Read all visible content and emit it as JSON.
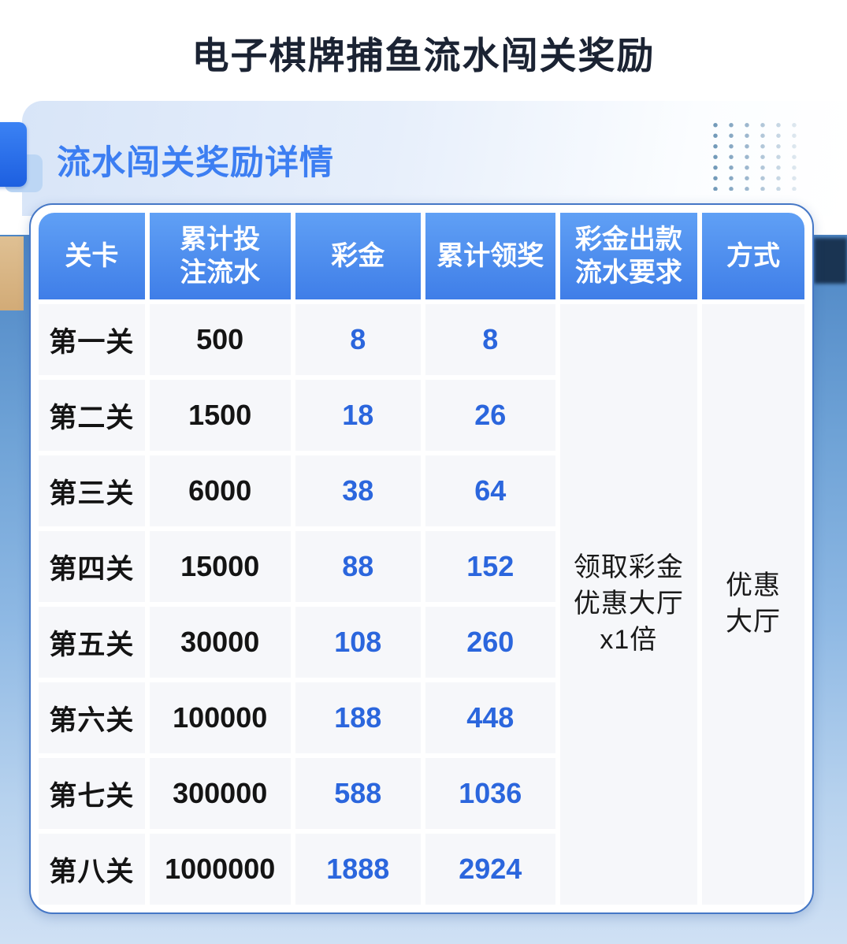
{
  "page": {
    "title": "电子棋牌捕鱼流水闯关奖励"
  },
  "section": {
    "title": "流水闯关奖励详情"
  },
  "colors": {
    "accent_blue": "#2166ee",
    "header_blue": "#4a8ae8",
    "number_blue": "#2b66dd",
    "title_navy": "#1b2333",
    "card_border": "#4577c6",
    "beige_block": "#d9b583"
  },
  "table": {
    "headers": {
      "level": "关卡",
      "turnover": "累计投\n注流水",
      "bonus": "彩金",
      "cumulative": "累计领奖",
      "requirement": "彩金出款\n流水要求",
      "method": "方式"
    },
    "rows": [
      {
        "level": "第一关",
        "turnover": "500",
        "bonus": "8",
        "cumulative": "8"
      },
      {
        "level": "第二关",
        "turnover": "1500",
        "bonus": "18",
        "cumulative": "26"
      },
      {
        "level": "第三关",
        "turnover": "6000",
        "bonus": "38",
        "cumulative": "64"
      },
      {
        "level": "第四关",
        "turnover": "15000",
        "bonus": "88",
        "cumulative": "152"
      },
      {
        "level": "第五关",
        "turnover": "30000",
        "bonus": "108",
        "cumulative": "260"
      },
      {
        "level": "第六关",
        "turnover": "100000",
        "bonus": "188",
        "cumulative": "448"
      },
      {
        "level": "第七关",
        "turnover": "300000",
        "bonus": "588",
        "cumulative": "1036"
      },
      {
        "level": "第八关",
        "turnover": "1000000",
        "bonus": "1888",
        "cumulative": "2924"
      }
    ],
    "merged": {
      "requirement": "领取彩金\n优惠大厅\nx1倍",
      "method": "优惠\n大厅"
    }
  }
}
